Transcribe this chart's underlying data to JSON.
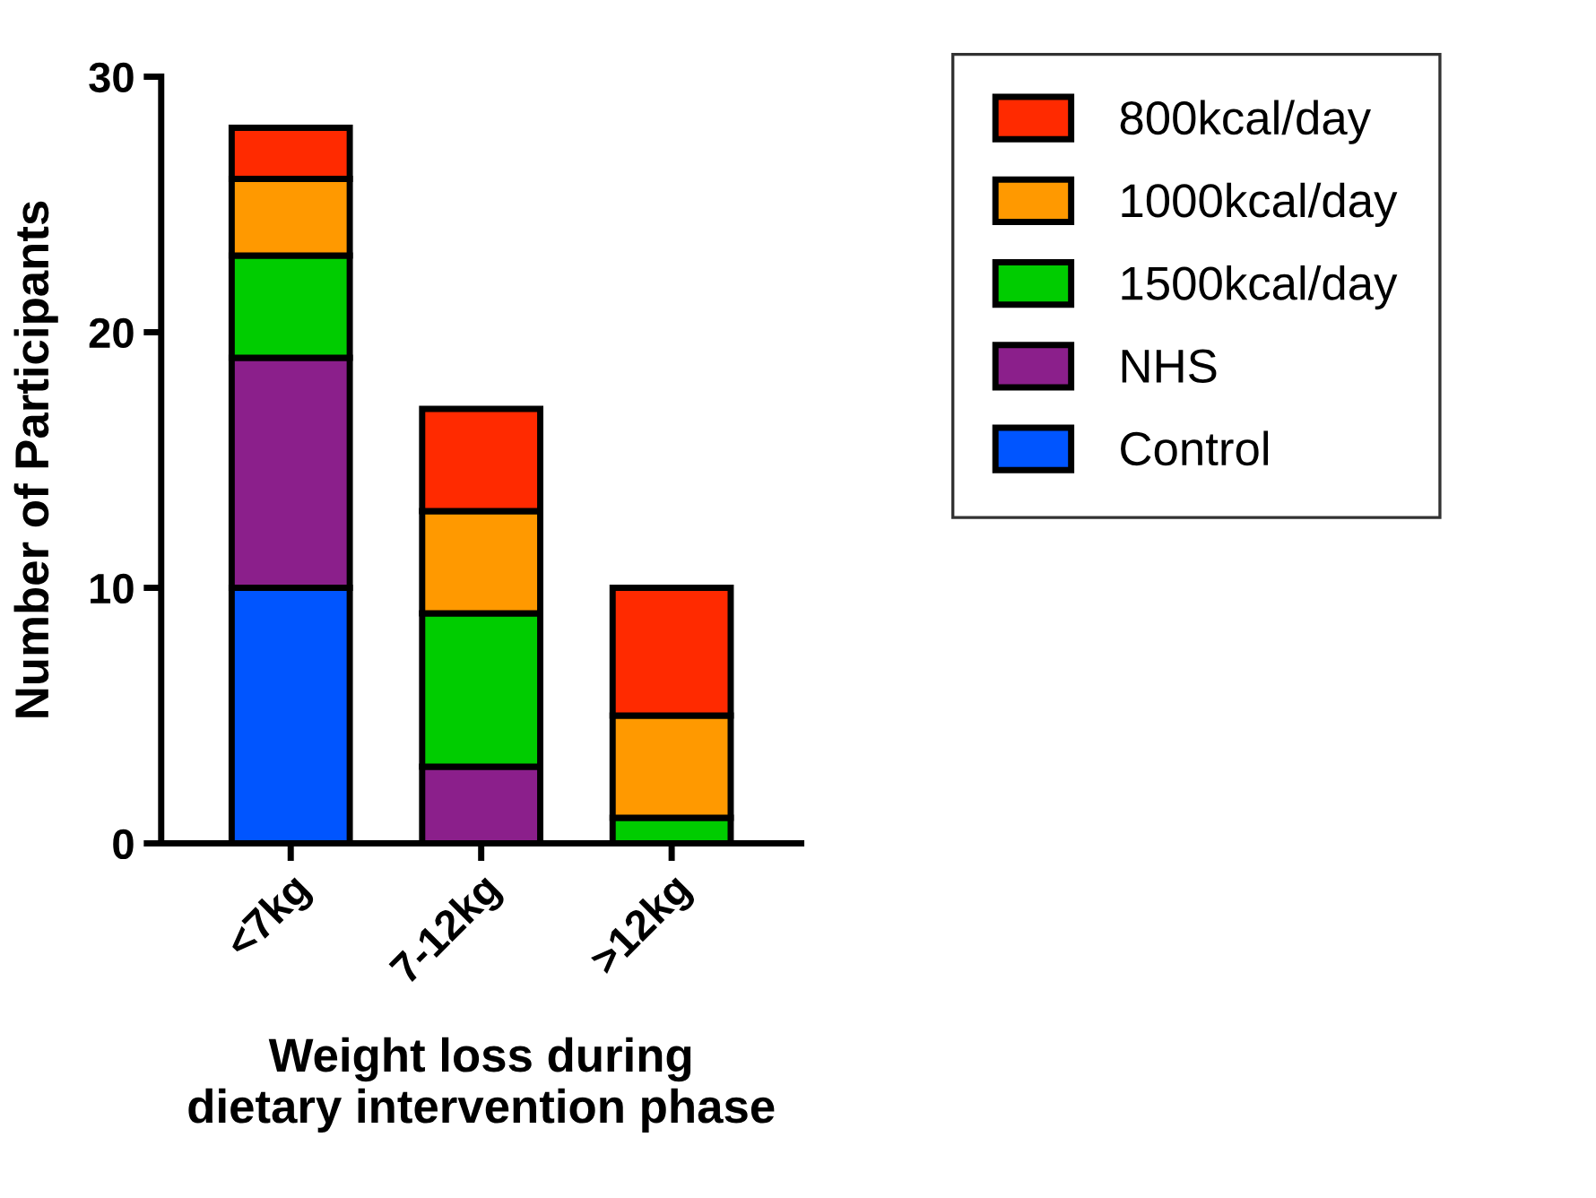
{
  "chart_data": {
    "type": "bar",
    "stacked": true,
    "xlabel": "Weight loss during\ndietary intervention phase",
    "ylabel": "Number of Participants",
    "categories": [
      "<7kg",
      "7-12kg",
      ">12kg"
    ],
    "series": [
      {
        "name": "Control",
        "color": "#0055ff",
        "values": [
          10,
          0,
          0
        ]
      },
      {
        "name": "NHS",
        "color": "#8b1f8b",
        "values": [
          9,
          3,
          0
        ]
      },
      {
        "name": "1500kcal/day",
        "color": "#00cc00",
        "values": [
          4,
          6,
          1
        ]
      },
      {
        "name": "1000kcal/day",
        "color": "#ff9900",
        "values": [
          3,
          4,
          4
        ]
      },
      {
        "name": "800kcal/day",
        "color": "#ff2a00",
        "values": [
          2,
          4,
          5
        ]
      }
    ],
    "ylim": [
      0,
      30
    ],
    "yticks": [
      0,
      10,
      20,
      30
    ],
    "grid": false,
    "legend": "right"
  }
}
